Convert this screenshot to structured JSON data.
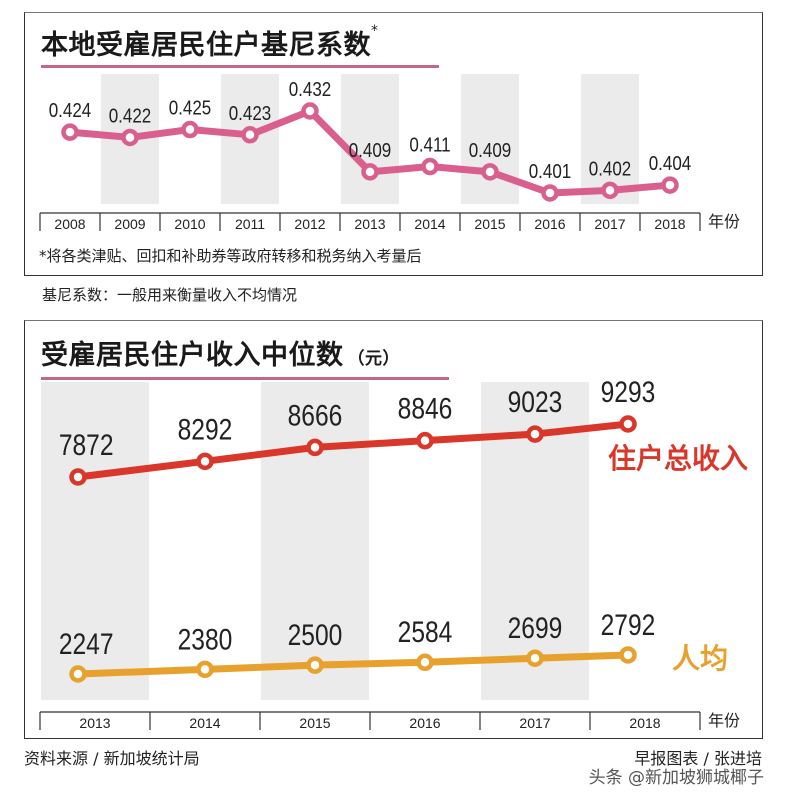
{
  "chart_data": [
    {
      "type": "line",
      "title": "本地受雇居民住户基尼系数*",
      "xlabel": "年份",
      "ylabel": "",
      "categories": [
        "2008",
        "2009",
        "2010",
        "2011",
        "2012",
        "2013",
        "2014",
        "2015",
        "2016",
        "2017",
        "2018"
      ],
      "series": [
        {
          "name": "基尼系数",
          "values": [
            0.424,
            0.422,
            0.425,
            0.423,
            0.432,
            0.409,
            0.411,
            0.409,
            0.401,
            0.402,
            0.404
          ],
          "color": "#d9608e"
        }
      ],
      "value_labels": [
        "0.424",
        "0.422",
        "0.425",
        "0.423",
        "0.432",
        "0.409",
        "0.411",
        "0.409",
        "0.401",
        "0.402",
        "0.404"
      ],
      "footnote": "*将各类津贴、回扣和补助券等政府转移和税务纳入考量后",
      "grid": false,
      "alternating_column_shading": true
    },
    {
      "type": "line",
      "title": "受雇居民住户收入中位数（元）",
      "xlabel": "年份",
      "ylabel": "元",
      "categories": [
        "2013",
        "2014",
        "2015",
        "2016",
        "2017",
        "2018"
      ],
      "series": [
        {
          "name": "住户总收入",
          "values": [
            7872,
            8292,
            8666,
            8846,
            9023,
            9293
          ],
          "color": "#d9372a"
        },
        {
          "name": "人均",
          "values": [
            2247,
            2380,
            2500,
            2584,
            2699,
            2792
          ],
          "color": "#e8a12c"
        }
      ],
      "grid": false,
      "alternating_column_shading": true
    }
  ],
  "chart1": {
    "title": "本地受雇居民住户基尼系数",
    "title_mark": "*",
    "years": [
      "2008",
      "2009",
      "2010",
      "2011",
      "2012",
      "2013",
      "2014",
      "2015",
      "2016",
      "2017",
      "2018"
    ],
    "labels": [
      "0.424",
      "0.422",
      "0.425",
      "0.423",
      "0.432",
      "0.409",
      "0.411",
      "0.409",
      "0.401",
      "0.402",
      "0.404"
    ],
    "x_unit": "年份",
    "footnote": "*将各类津贴、回扣和补助券等政府转移和税务纳入考量后"
  },
  "definition": "基尼系数：一般用来衡量收入不均情况",
  "chart2": {
    "title": "受雇居民住户收入中位数",
    "unit": "（元）",
    "years": [
      "2013",
      "2014",
      "2015",
      "2016",
      "2017",
      "2018"
    ],
    "household_label": "住户总收入",
    "household_values": [
      "7872",
      "8292",
      "8666",
      "8846",
      "9023",
      "9293"
    ],
    "per_capita_label": "人均",
    "per_capita_values": [
      "2247",
      "2380",
      "2500",
      "2584",
      "2699",
      "2792"
    ],
    "x_unit": "年份"
  },
  "footer": {
    "source": "资料来源 / 新加坡统计局",
    "credit": "早报图表 / 张进培",
    "watermark": "头条 @新加坡狮城椰子"
  },
  "colors": {
    "gini": "#d9608e",
    "household": "#d9372a",
    "per_capita": "#e8a12c",
    "shade": "#ebebeb",
    "title_underline": "#c46688"
  }
}
